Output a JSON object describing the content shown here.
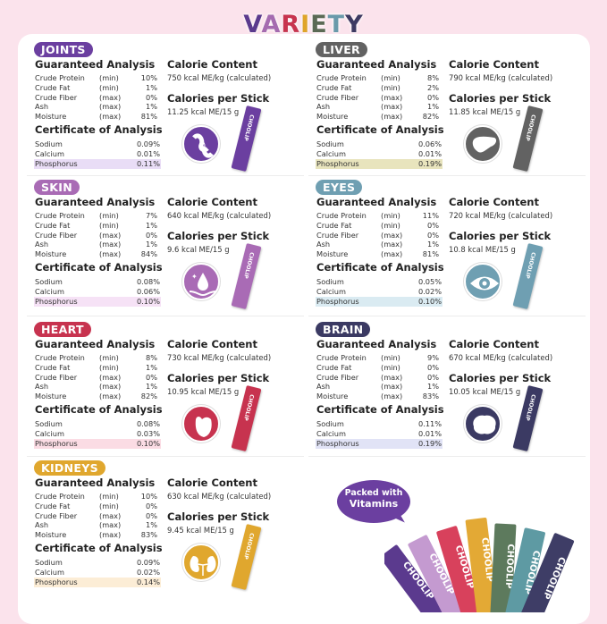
{
  "title": {
    "letters": [
      "V",
      "A",
      "R",
      "I",
      "E",
      "T",
      "Y"
    ],
    "colors": [
      "#5b3a8e",
      "#a56bb0",
      "#c8344f",
      "#e0a52a",
      "#5b6a55",
      "#6a9aab",
      "#3d3a62"
    ]
  },
  "headings": {
    "guaranteed": "Guaranteed Analysis",
    "calorie": "Calorie Content",
    "per_stick": "Calories per Stick",
    "certificate": "Certificate of Analysis"
  },
  "panels": [
    {
      "name": "JOINTS",
      "color": "#6b3fa0",
      "highlight": "#e9ddf6",
      "icon": "joint-icon",
      "guaranteed": [
        [
          "Crude Protein",
          "(min)",
          "10%"
        ],
        [
          "Crude Fat",
          "(min)",
          "1%"
        ],
        [
          "Crude Fiber",
          "(max)",
          "0%"
        ],
        [
          "Ash",
          "(max)",
          "1%"
        ],
        [
          "Moisture",
          "(max)",
          "81%"
        ]
      ],
      "calorie": "750 kcal ME/kg (calculated)",
      "per_stick": "11.25 kcal ME/15 g",
      "certificate": [
        [
          "Sodium",
          "0.09%"
        ],
        [
          "Calcium",
          "0.01%"
        ],
        [
          "Phosphorus",
          "0.11%"
        ]
      ]
    },
    {
      "name": "LIVER",
      "color": "#626262",
      "highlight": "#e8e4bd",
      "icon": "liver-icon",
      "guaranteed": [
        [
          "Crude Protein",
          "(min)",
          "8%"
        ],
        [
          "Crude Fat",
          "(min)",
          "2%"
        ],
        [
          "Crude Fiber",
          "(max)",
          "0%"
        ],
        [
          "Ash",
          "(max)",
          "1%"
        ],
        [
          "Moisture",
          "(max)",
          "82%"
        ]
      ],
      "calorie": "790 kcal ME/kg (calculated)",
      "per_stick": "11.85 kcal ME/15 g",
      "certificate": [
        [
          "Sodium",
          "0.06%"
        ],
        [
          "Calcium",
          "0.01%"
        ],
        [
          "Phosphorus",
          "0.19%"
        ]
      ]
    },
    {
      "name": "SKIN",
      "color": "#a96bb5",
      "highlight": "#f6e2f6",
      "icon": "skin-icon",
      "guaranteed": [
        [
          "Crude Protein",
          "(min)",
          "7%"
        ],
        [
          "Crude Fat",
          "(min)",
          "1%"
        ],
        [
          "Crude Fiber",
          "(max)",
          "0%"
        ],
        [
          "Ash",
          "(max)",
          "1%"
        ],
        [
          "Moisture",
          "(max)",
          "84%"
        ]
      ],
      "calorie": "640 kcal ME/kg (calculated)",
      "per_stick": "9.6 kcal ME/15 g",
      "certificate": [
        [
          "Sodium",
          "0.08%"
        ],
        [
          "Calcium",
          "0.06%"
        ],
        [
          "Phosphorus",
          "0.10%"
        ]
      ]
    },
    {
      "name": "EYES",
      "color": "#6f9fb2",
      "highlight": "#daebf2",
      "icon": "eye-icon",
      "guaranteed": [
        [
          "Crude Protein",
          "(min)",
          "11%"
        ],
        [
          "Crude Fat",
          "(min)",
          "0%"
        ],
        [
          "Crude Fiber",
          "(max)",
          "0%"
        ],
        [
          "Ash",
          "(max)",
          "1%"
        ],
        [
          "Moisture",
          "(max)",
          "81%"
        ]
      ],
      "calorie": "720 kcal ME/kg (calculated)",
      "per_stick": "10.8 kcal ME/15 g",
      "certificate": [
        [
          "Sodium",
          "0.05%"
        ],
        [
          "Calcium",
          "0.02%"
        ],
        [
          "Phosphorus",
          "0.10%"
        ]
      ]
    },
    {
      "name": "HEART",
      "color": "#c7334f",
      "highlight": "#fbdce4",
      "icon": "heart-icon",
      "guaranteed": [
        [
          "Crude Protein",
          "(min)",
          "8%"
        ],
        [
          "Crude Fat",
          "(min)",
          "1%"
        ],
        [
          "Crude Fiber",
          "(max)",
          "0%"
        ],
        [
          "Ash",
          "(max)",
          "1%"
        ],
        [
          "Moisture",
          "(max)",
          "82%"
        ]
      ],
      "calorie": "730 kcal ME/kg (calculated)",
      "per_stick": "10.95 kcal ME/15 g",
      "certificate": [
        [
          "Sodium",
          "0.08%"
        ],
        [
          "Calcium",
          "0.03%"
        ],
        [
          "Phosphorus",
          "0.10%"
        ]
      ]
    },
    {
      "name": "BRAIN",
      "color": "#3b3a63",
      "highlight": "#e1e3f6",
      "icon": "brain-icon",
      "guaranteed": [
        [
          "Crude Protein",
          "(min)",
          "9%"
        ],
        [
          "Crude Fat",
          "(min)",
          "0%"
        ],
        [
          "Crude Fiber",
          "(max)",
          "0%"
        ],
        [
          "Ash",
          "(max)",
          "1%"
        ],
        [
          "Moisture",
          "(max)",
          "83%"
        ]
      ],
      "calorie": "670 kcal ME/kg (calculated)",
      "per_stick": "10.05 kcal ME/15 g",
      "certificate": [
        [
          "Sodium",
          "0.11%"
        ],
        [
          "Calcium",
          "0.01%"
        ],
        [
          "Phosphorus",
          "0.19%"
        ]
      ]
    },
    {
      "name": "KIDNEYS",
      "color": "#e0a72e",
      "highlight": "#fcedd6",
      "icon": "kidney-icon",
      "guaranteed": [
        [
          "Crude Protein",
          "(min)",
          "10%"
        ],
        [
          "Crude Fat",
          "(min)",
          "0%"
        ],
        [
          "Crude Fiber",
          "(max)",
          "0%"
        ],
        [
          "Ash",
          "(max)",
          "1%"
        ],
        [
          "Moisture",
          "(max)",
          "83%"
        ]
      ],
      "calorie": "630 kcal ME/kg (calculated)",
      "per_stick": "9.45 kcal ME/15 g",
      "certificate": [
        [
          "Sodium",
          "0.09%"
        ],
        [
          "Calcium",
          "0.02%"
        ],
        [
          "Phosphorus",
          "0.14%"
        ]
      ]
    }
  ],
  "promo": {
    "line1": "Packed with",
    "line2": "Vitamins",
    "brand": "CHOOLIP",
    "stick_colors": [
      "#5b3a8e",
      "#c49ad0",
      "#d8415c",
      "#e3a935",
      "#5d7a5d",
      "#5e9aa3",
      "#3e3d66"
    ]
  }
}
